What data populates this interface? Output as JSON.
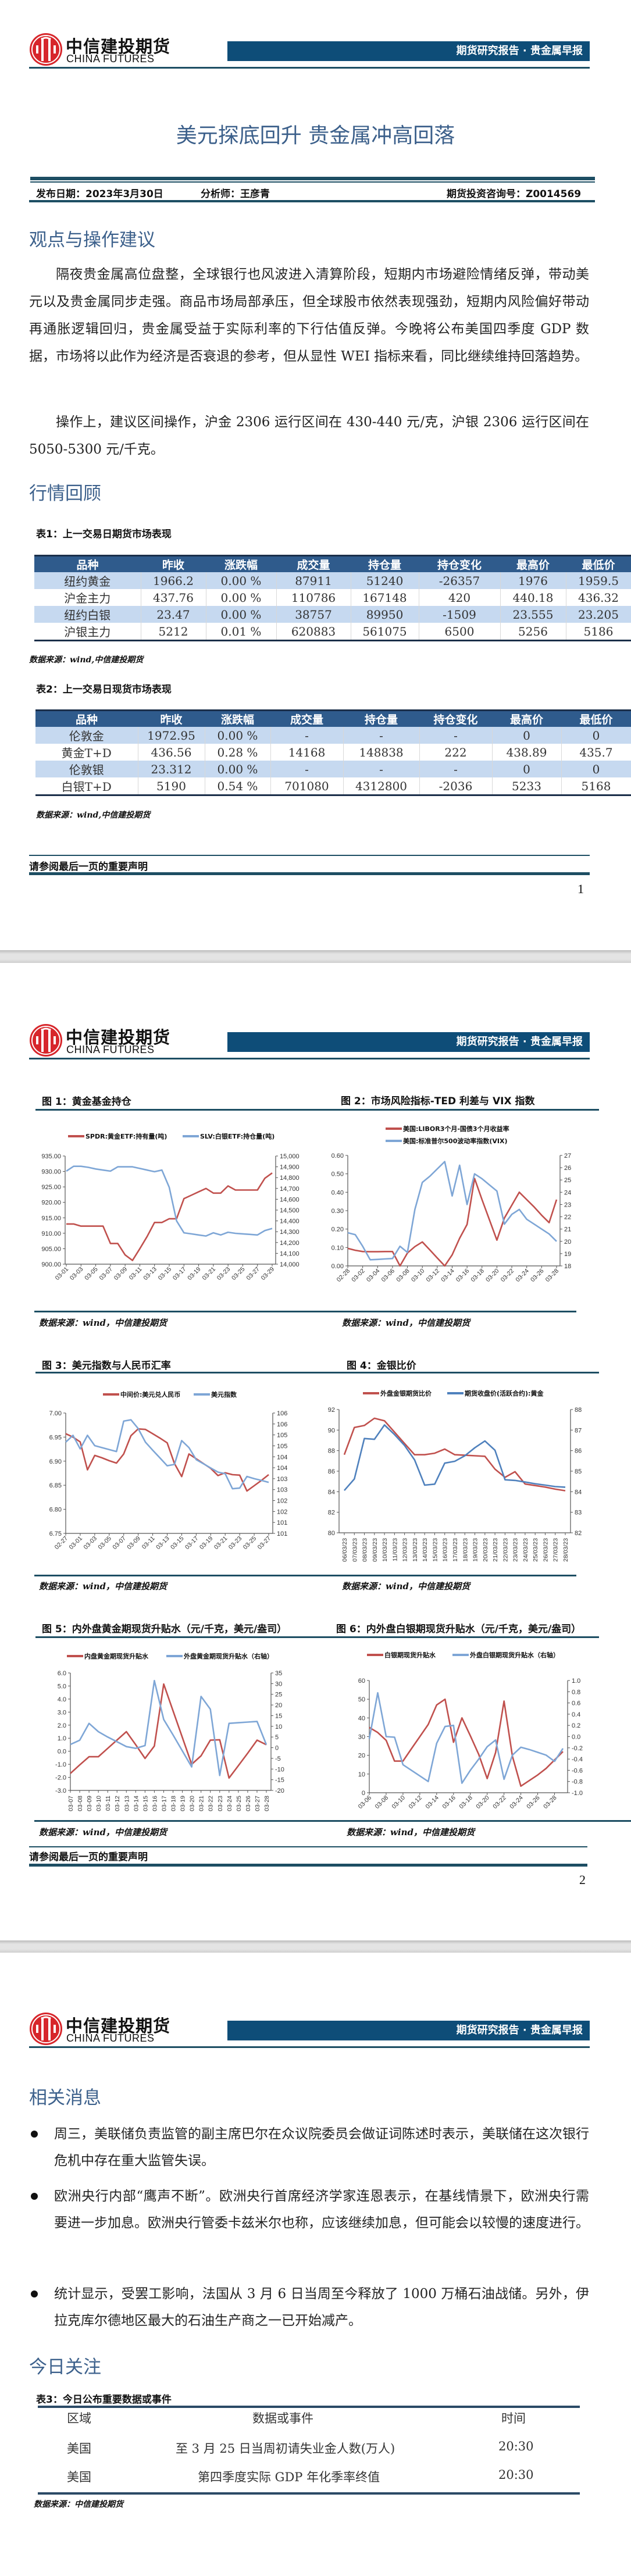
{
  "brand": {
    "name_cn": "中信建投期货",
    "name_en": "CHINA FUTURES"
  },
  "header": {
    "report_type": "期货研究报告 · 贵金属早报"
  },
  "title": "美元探底回升 贵金属冲高回落",
  "meta": {
    "publish_date": "发布日期：2023年3月30日",
    "analyst": "分析师：王彦青",
    "license": "期货投资咨询号：Z0014569"
  },
  "section_view": {
    "heading": "观点与操作建议",
    "paragraphs": [
      "隔夜贵金属高位盘整，全球银行也风波进入清算阶段，短期内市场避险情绪反弹，带动美元以及贵金属同步走强。商品市场局部承压，但全球股市依然表现强劲，短期内风险偏好带动再通胀逻辑回归，贵金属受益于实际利率的下行估值反弹。今晚将公布美国四季度 GDP 数据，市场将以此作为经济是否衰退的参考，但从显性 WEI 指标来看，同比继续维持回落趋势。",
      "操作上，建议区间操作，沪金 2306 运行区间在 430-440 元/克，沪银 2306 运行区间在 5050-5300 元/千克。"
    ]
  },
  "section_review": {
    "heading": "行情回顾"
  },
  "table1": {
    "caption": "表1：上一交易日期货市场表现",
    "headers": [
      "品种",
      "昨收",
      "涨跌幅",
      "成交量",
      "持仓量",
      "持仓变化",
      "最高价",
      "最低价"
    ],
    "rows": [
      [
        "纽约黄金",
        "1966.2",
        "0.00 %",
        "87911",
        "51240",
        "-26357",
        "1976",
        "1959.5"
      ],
      [
        "沪金主力",
        "437.76",
        "0.00 %",
        "110786",
        "167148",
        "420",
        "440.18",
        "436.32"
      ],
      [
        "纽约白银",
        "23.47",
        "0.00 %",
        "38757",
        "89950",
        "-1509",
        "23.555",
        "23.205"
      ],
      [
        "沪银主力",
        "5212",
        "0.01 %",
        "620883",
        "561075",
        "6500",
        "5256",
        "5186"
      ]
    ],
    "source": "数据来源：wind,中信建投期货"
  },
  "table2": {
    "caption": "表2：上一交易日现货市场表现",
    "headers": [
      "品种",
      "昨收",
      "涨跌幅",
      "成交量",
      "持仓量",
      "持仓变化",
      "最高价",
      "最低价"
    ],
    "rows": [
      [
        "伦敦金",
        "1972.95",
        "0.00 %",
        "-",
        "-",
        "-",
        "0",
        "0"
      ],
      [
        "黄金T+D",
        "436.56",
        "0.28 %",
        "14168",
        "148838",
        "222",
        "438.89",
        "435.7"
      ],
      [
        "伦敦银",
        "23.312",
        "0.00 %",
        "-",
        "-",
        "-",
        "0",
        "0"
      ],
      [
        "白银T+D",
        "5190",
        "0.54 %",
        "701080",
        "4312800",
        "-2036",
        "5233",
        "5168"
      ]
    ],
    "source": "数据来源：wind,中信建投期货"
  },
  "disclaimer": "请参阅最后一页的重要声明",
  "pages": [
    "1",
    "2"
  ],
  "chart_source": "数据来源：wind，中信建投期货",
  "chart_data": [
    {
      "id": "fig1",
      "type": "line",
      "title": "图 1：黄金基金持仓",
      "x": [
        "03-01",
        "03-02",
        "03-03",
        "03-04",
        "03-05",
        "03-06",
        "03-07",
        "03-08",
        "03-09",
        "03-10",
        "03-11",
        "03-12",
        "03-13",
        "03-14",
        "03-15",
        "03-16",
        "03-17",
        "03-18",
        "03-19",
        "03-20",
        "03-21",
        "03-22",
        "03-23",
        "03-24",
        "03-25",
        "03-26",
        "03-27",
        "03-28",
        "03-29"
      ],
      "x_labels": [
        "03-01",
        "03-03",
        "03-05",
        "03-07",
        "03-09",
        "03-11",
        "03-13",
        "03-15",
        "03-17",
        "03-19",
        "03-21",
        "03-23",
        "03-25",
        "03-27",
        "03-29"
      ],
      "left_axis": {
        "min": 900,
        "max": 935,
        "ticks": [
          "900.00",
          "905.00",
          "910.00",
          "915.00",
          "920.00",
          "925.00",
          "930.00",
          "935.00"
        ]
      },
      "right_axis": {
        "min": 14000,
        "max": 15000,
        "ticks": [
          "14,000",
          "14,100",
          "14,200",
          "14,300",
          "14,400",
          "14,500",
          "14,600",
          "14,700",
          "14,800",
          "14,900",
          "15,000"
        ]
      },
      "series": [
        {
          "name": "SPDR:黄金ETF:持有量(吨)",
          "axis": "left",
          "color": "#c0504d",
          "values": [
            913,
            913,
            912.3,
            912.3,
            912.3,
            912.3,
            906.7,
            906.7,
            903,
            901.2,
            905,
            909,
            913.5,
            913.5,
            914.7,
            914.7,
            921.2,
            922.3,
            923.4,
            924.5,
            923,
            923,
            925.3,
            924,
            924,
            924,
            924,
            927.8,
            929.5
          ]
        },
        {
          "name": "SLV:白银ETF:持仓量(吨)",
          "axis": "right",
          "color": "#7ea6d6",
          "values": [
            14860,
            14905,
            14905,
            14895,
            14880,
            14870,
            14860,
            14900,
            14900,
            14900,
            14885,
            14870,
            14855,
            14870,
            14710,
            14400,
            14290,
            14280,
            14270,
            14260,
            14290,
            14270,
            14295,
            14285,
            14280,
            14275,
            14270,
            14310,
            14330
          ]
        }
      ]
    },
    {
      "id": "fig2",
      "type": "line",
      "title": "图 2：市场风险指标-TED 利差与 VIX 指数",
      "x": [
        "02-28",
        "03-01",
        "03-02",
        "03-03",
        "03-04",
        "03-05",
        "03-06",
        "03-07",
        "03-08",
        "03-09",
        "03-10",
        "03-11",
        "03-12",
        "03-13",
        "03-14",
        "03-15",
        "03-16",
        "03-17",
        "03-18",
        "03-19",
        "03-20",
        "03-21",
        "03-22",
        "03-23",
        "03-24",
        "03-25",
        "03-26",
        "03-27",
        "03-28"
      ],
      "x_labels": [
        "02-28",
        "03-02",
        "03-04",
        "03-06",
        "03-08",
        "03-10",
        "03-12",
        "03-14",
        "03-16",
        "03-18",
        "03-20",
        "03-22",
        "03-24",
        "03-26",
        "03-28"
      ],
      "left_axis": {
        "min": 0,
        "max": 0.6,
        "ticks": [
          "0.00",
          "0.10",
          "0.20",
          "0.30",
          "0.40",
          "0.50",
          "0.60"
        ]
      },
      "right_axis": {
        "min": 18,
        "max": 27,
        "ticks": [
          "18",
          "19",
          "20",
          "21",
          "22",
          "23",
          "24",
          "25",
          "26",
          "27"
        ]
      },
      "series": [
        {
          "name": "美国:LIBOR3个月-国债3个月收益率",
          "axis": "left",
          "color": "#c0504d",
          "values": [
            0.095,
            0.085,
            0.078,
            0.077,
            0.077,
            0.078,
            0.078,
            0.0,
            0.07,
            0.105,
            0.13,
            0.087,
            0.043,
            0.0,
            0.06,
            0.15,
            0.225,
            0.475,
            0.36,
            0.25,
            0.14,
            0.26,
            0.33,
            0.4,
            0.36,
            0.32,
            0.275,
            0.235,
            0.36
          ]
        },
        {
          "name": "美国:标准普尔500波动率指数(VIX)",
          "axis": "right",
          "color": "#7ea6d6",
          "values": [
            20.7,
            20.55,
            19.6,
            18.5,
            18.53,
            18.57,
            18.6,
            19.6,
            19.1,
            22.6,
            24.8,
            25.3,
            25.9,
            26.5,
            23.7,
            26.2,
            23.0,
            25.5,
            25.1,
            24.6,
            24.1,
            21.4,
            22.2,
            22.6,
            21.8,
            21.4,
            21.0,
            20.6,
            20.0
          ]
        }
      ]
    },
    {
      "id": "fig3",
      "type": "line",
      "title": "图 3：美元指数与人民币汇率",
      "x": [
        "02-27",
        "02-28",
        "03-01",
        "03-02",
        "03-03",
        "03-04",
        "03-05",
        "03-06",
        "03-07",
        "03-08",
        "03-09",
        "03-10",
        "03-11",
        "03-12",
        "03-13",
        "03-14",
        "03-15",
        "03-16",
        "03-17",
        "03-18",
        "03-19",
        "03-20",
        "03-21",
        "03-22",
        "03-23",
        "03-24",
        "03-25",
        "03-26",
        "03-27"
      ],
      "x_labels": [
        "02-27",
        "03-01",
        "03-03",
        "03-05",
        "03-07",
        "03-09",
        "03-11",
        "03-13",
        "03-15",
        "03-17",
        "03-19",
        "03-21",
        "03-23",
        "03-25",
        "03-27"
      ],
      "left_axis": {
        "min": 6.75,
        "max": 7.0,
        "ticks": [
          "6.75",
          "6.80",
          "6.85",
          "6.90",
          "6.95",
          "7.00"
        ]
      },
      "right_axis": {
        "min": 100.5,
        "max": 106,
        "ticks": [
          "101",
          "101",
          "102",
          "102",
          "103",
          "103",
          "104",
          "104",
          "105",
          "105",
          "106",
          "106"
        ]
      },
      "series": [
        {
          "name": "中间价:美元兑人民币",
          "axis": "left",
          "color": "#c0504d",
          "values": [
            6.957,
            6.95,
            6.94,
            6.882,
            6.912,
            6.907,
            6.901,
            6.896,
            6.915,
            6.953,
            6.967,
            6.966,
            6.957,
            6.948,
            6.938,
            6.895,
            6.868,
            6.915,
            6.905,
            6.895,
            6.885,
            6.87,
            6.876,
            6.872,
            6.871,
            6.838,
            6.849,
            6.86,
            6.872
          ]
        },
        {
          "name": "美元指数",
          "axis": "right",
          "color": "#7ea6d6",
          "values": [
            104.67,
            104.98,
            104.36,
            104.98,
            104.51,
            104.42,
            104.33,
            104.24,
            105.63,
            105.69,
            105.29,
            104.67,
            104.3,
            103.95,
            103.59,
            103.65,
            104.74,
            104.42,
            103.87,
            103.68,
            103.49,
            103.3,
            103.23,
            102.54,
            102.57,
            103.1,
            103.0,
            102.92,
            102.83
          ]
        }
      ]
    },
    {
      "id": "fig4",
      "type": "line",
      "title": "图 4：金银比价",
      "x": [
        "06/03/23",
        "07/03/23",
        "08/03/23",
        "09/03/23",
        "10/03/23",
        "11/03/23",
        "12/03/23",
        "13/03/23",
        "14/03/23",
        "15/03/23",
        "16/03/23",
        "17/03/23",
        "18/03/23",
        "19/03/23",
        "20/03/23",
        "21/03/23",
        "22/03/23",
        "23/03/23",
        "24/03/23",
        "25/03/23",
        "26/03/23",
        "27/03/23",
        "28/03/23"
      ],
      "x_labels": [
        "06/03/23",
        "07/03/23",
        "08/03/23",
        "09/03/23",
        "10/03/23",
        "11/03/23",
        "12/03/23",
        "13/03/23",
        "14/03/23",
        "15/03/23",
        "16/03/23",
        "17/03/23",
        "18/03/23",
        "19/03/23",
        "20/03/23",
        "21/03/23",
        "22/03/23",
        "23/03/23",
        "24/03/23",
        "25/03/23",
        "26/03/23",
        "27/03/23",
        "28/03/23"
      ],
      "left_axis": {
        "min": 80,
        "max": 92,
        "ticks": [
          "80",
          "82",
          "84",
          "86",
          "88",
          "90",
          "92"
        ]
      },
      "right_axis": {
        "min": 82,
        "max": 88,
        "ticks": [
          "82",
          "83",
          "84",
          "85",
          "86",
          "87",
          "88"
        ]
      },
      "series": [
        {
          "name": "外盘金银期货比价",
          "axis": "left",
          "color": "#c0504d",
          "values": [
            87.6,
            90.25,
            90.45,
            91.15,
            90.9,
            89.8,
            88.7,
            87.6,
            87.6,
            87.75,
            88.15,
            87.6,
            87.55,
            87.5,
            87.45,
            86.2,
            85.4,
            85.95,
            84.75,
            84.6,
            84.45,
            84.25,
            84.1
          ]
        },
        {
          "name": "期货收盘价(活跃合约):黄金",
          "axis": "right",
          "color": "#4f81bd",
          "values": [
            84.06,
            84.62,
            86.59,
            86.55,
            87.25,
            86.78,
            86.25,
            85.55,
            84.32,
            84.37,
            85.39,
            85.48,
            85.75,
            86.14,
            86.47,
            86.02,
            84.58,
            84.55,
            84.47,
            84.39,
            84.32,
            84.25,
            84.22
          ]
        }
      ]
    },
    {
      "id": "fig5",
      "type": "line",
      "title": "图 5：内外盘黄金期现货升贴水（元/千克，美元/盎司）",
      "x": [
        "03-07",
        "03-08",
        "03-09",
        "03-10",
        "03-11",
        "03-12",
        "03-13",
        "03-14",
        "03-15",
        "03-16",
        "03-17",
        "03-18",
        "03-19",
        "03-20",
        "03-21",
        "03-22",
        "03-23",
        "03-24",
        "03-25",
        "03-26",
        "03-27",
        "03-28"
      ],
      "x_labels": [
        "03-07",
        "03-08",
        "03-09",
        "03-10",
        "03-11",
        "03-12",
        "03-13",
        "03-14",
        "03-15",
        "03-16",
        "03-17",
        "03-18",
        "03-19",
        "03-20",
        "03-21",
        "03-22",
        "03-23",
        "03-24",
        "03-25",
        "03-26",
        "03-27",
        "03-28"
      ],
      "left_axis": {
        "min": -3,
        "max": 6,
        "ticks": [
          "-3.0",
          "-2.0",
          "-1.0",
          "0.0",
          "1.0",
          "2.0",
          "3.0",
          "4.0",
          "5.0",
          "6.0"
        ]
      },
      "right_axis": {
        "min": -20,
        "max": 35,
        "ticks": [
          "-20",
          "-15",
          "-10",
          "-5",
          "0",
          "5",
          "10",
          "15",
          "20",
          "25",
          "30",
          "35"
        ]
      },
      "series": [
        {
          "name": "内盘黄金期现货升贴水",
          "axis": "left",
          "color": "#c0504d",
          "values": [
            -1.7,
            -1.05,
            -0.42,
            -0.42,
            0.22,
            0.86,
            1.5,
            0.5,
            -0.55,
            0.4,
            5.15,
            3.1,
            1.05,
            -1.0,
            -0.35,
            0.85,
            0.88,
            -2.05,
            -1.1,
            -0.15,
            0.85,
            0.5
          ]
        },
        {
          "name": "外盘黄金期现货升贴水（右轴）",
          "axis": "right",
          "color": "#7ea6d6",
          "values": [
            1.5,
            3.5,
            11.4,
            7.5,
            5,
            2.8,
            0.5,
            -0.3,
            1.0,
            31.4,
            13.2,
            6,
            -1.5,
            -9,
            24,
            18,
            -13,
            11.4,
            11.7,
            12,
            12.3,
            1.4
          ]
        }
      ]
    },
    {
      "id": "fig6",
      "type": "line",
      "title": "图 6：内外盘白银期现货升贴水（元/千克，美元/盎司）",
      "x": [
        "03-06",
        "03-07",
        "03-08",
        "03-09",
        "03-10",
        "03-11",
        "03-12",
        "03-13",
        "03-14",
        "03-15",
        "03-16",
        "03-17",
        "03-18",
        "03-19",
        "03-20",
        "03-21",
        "03-22",
        "03-23",
        "03-24",
        "03-25",
        "03-26",
        "03-27",
        "03-28",
        "03-29"
      ],
      "x_labels": [
        "03-06",
        "03-08",
        "03-10",
        "03-12",
        "03-14",
        "03-16",
        "03-18",
        "03-20",
        "03-22",
        "03-24",
        "03-26",
        "03-28"
      ],
      "left_axis": {
        "min": 0,
        "max": 60,
        "ticks": [
          "0",
          "10",
          "20",
          "30",
          "40",
          "50",
          "60"
        ]
      },
      "right_axis": {
        "min": -1,
        "max": 1,
        "ticks": [
          "-1.0",
          "-0.8",
          "-0.6",
          "-0.4",
          "-0.2",
          "0.0",
          "0.2",
          "0.4",
          "0.6",
          "0.8",
          "1.0"
        ]
      },
      "series": [
        {
          "name": "白银期现货升贴水",
          "axis": "left",
          "color": "#c0504d",
          "values": [
            34.9,
            32.2,
            28.0,
            16.9,
            16.9,
            23.5,
            30,
            36.5,
            46.9,
            50,
            27,
            40,
            30.5,
            20.5,
            7.6,
            21.5,
            49,
            19.5,
            3.5,
            6.5,
            9.5,
            13,
            17.5,
            22
          ]
        },
        {
          "name": "外盘白银期现货升贴水（右轴）",
          "axis": "right",
          "color": "#7ea6d6",
          "values": [
            -0.04,
            0.78,
            0.0,
            -0.01,
            -0.5,
            -0.6,
            -0.7,
            -0.8,
            -0.12,
            0.18,
            0.2,
            -0.83,
            -0.6,
            -0.4,
            -0.18,
            -0.06,
            -0.76,
            -0.33,
            -0.19,
            -0.23,
            -0.28,
            -0.33,
            -0.44,
            -0.21
          ]
        }
      ]
    }
  ],
  "section_news": {
    "heading": "相关消息",
    "items": [
      "周三，美联储负责监管的副主席巴尔在众议院委员会做证词陈述时表示，美联储在这次银行危机中存在重大监管失误。",
      "欧洲央行内部“鹰声不断”。欧洲央行首席经济学家连恩表示，在基线情景下，欧洲央行需要进一步加息。欧洲央行管委卡兹米尔也称，应该继续加息，但可能会以较慢的速度进行。",
      "统计显示，受罢工影响，法国从 3 月 6 日当周至今释放了 1000 万桶石油战储。另外，伊拉克库尔德地区最大的石油生产商之一已开始减产。"
    ]
  },
  "section_today": {
    "heading": "今日关注",
    "caption": "表3：今日公布重要数据或事件",
    "headers": [
      "区域",
      "数据或事件",
      "时间"
    ],
    "rows": [
      [
        "美国",
        "至 3 月 25 日当周初请失业金人数(万人)",
        "20:30"
      ],
      [
        "美国",
        "第四季度实际 GDP 年化季率终值",
        "20:30"
      ]
    ],
    "source": "数据来源：中信建投期货"
  }
}
